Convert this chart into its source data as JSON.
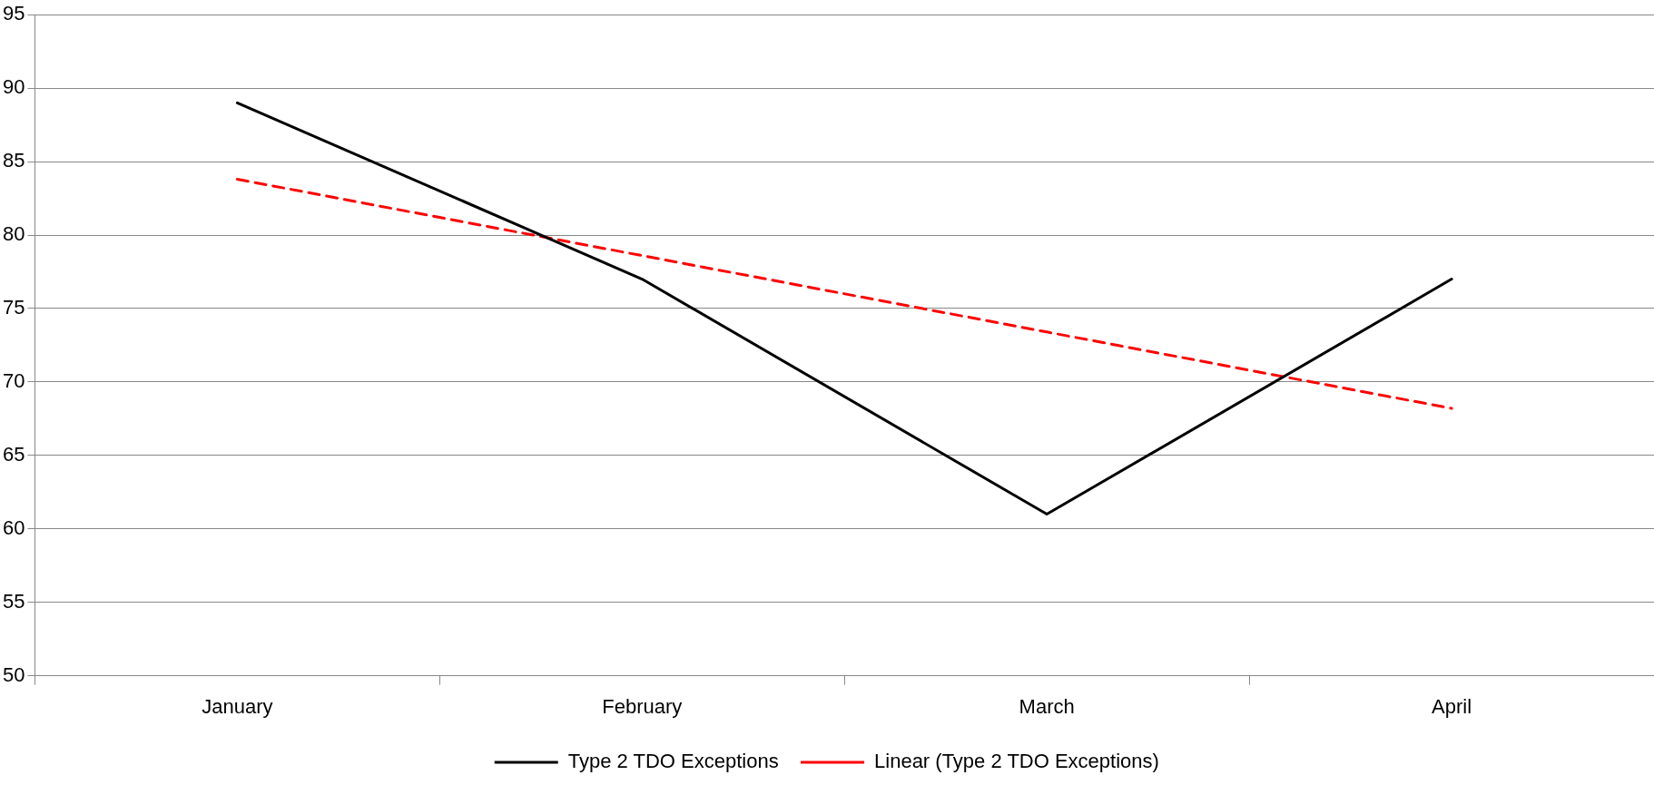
{
  "chart_data": {
    "type": "line",
    "categories": [
      "January",
      "February",
      "March",
      "April"
    ],
    "series": [
      {
        "name": "Type 2 TDO Exceptions",
        "color": "#000000",
        "values": [
          89,
          77,
          61,
          77
        ],
        "line_style": "solid"
      },
      {
        "name": "Linear (Type 2 TDO Exceptions)",
        "color": "#ff0000",
        "values": [
          83.8,
          78.6,
          73.4,
          68.2
        ],
        "line_style": "dashed"
      }
    ],
    "ylim": [
      50,
      95
    ],
    "yticks": [
      50,
      55,
      60,
      65,
      70,
      75,
      80,
      85,
      90,
      95
    ],
    "grid": "y",
    "legend": "bottom",
    "marker": "none"
  }
}
